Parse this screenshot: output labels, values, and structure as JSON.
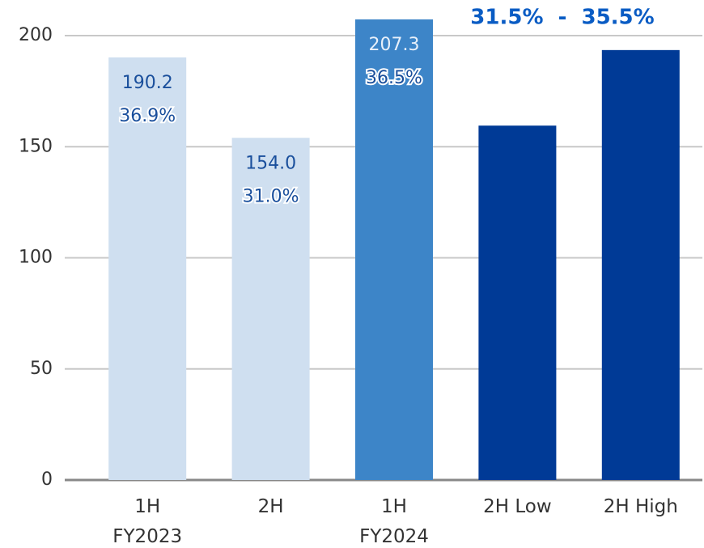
{
  "chart_data": {
    "type": "bar",
    "categories": [
      "1H\nFY2023",
      "2H",
      "1H\nFY2024",
      "2H Low",
      "2H High"
    ],
    "values": [
      190.2,
      154.0,
      207.3,
      159.5,
      193.5
    ],
    "value_labels": [
      "190.2",
      "154.0",
      "207.3",
      null,
      null
    ],
    "margin_labels": [
      "36.9%",
      "31.0%",
      "36.5%",
      null,
      null
    ],
    "range_label": "31.5%  -  35.5%",
    "colors": [
      "#cfdff0",
      "#cfdff0",
      "#3d85c8",
      "#003a96",
      "#003a96"
    ],
    "ylim": [
      0,
      200
    ],
    "yticks": [
      0,
      50,
      100,
      150,
      200
    ],
    "grid": true
  }
}
